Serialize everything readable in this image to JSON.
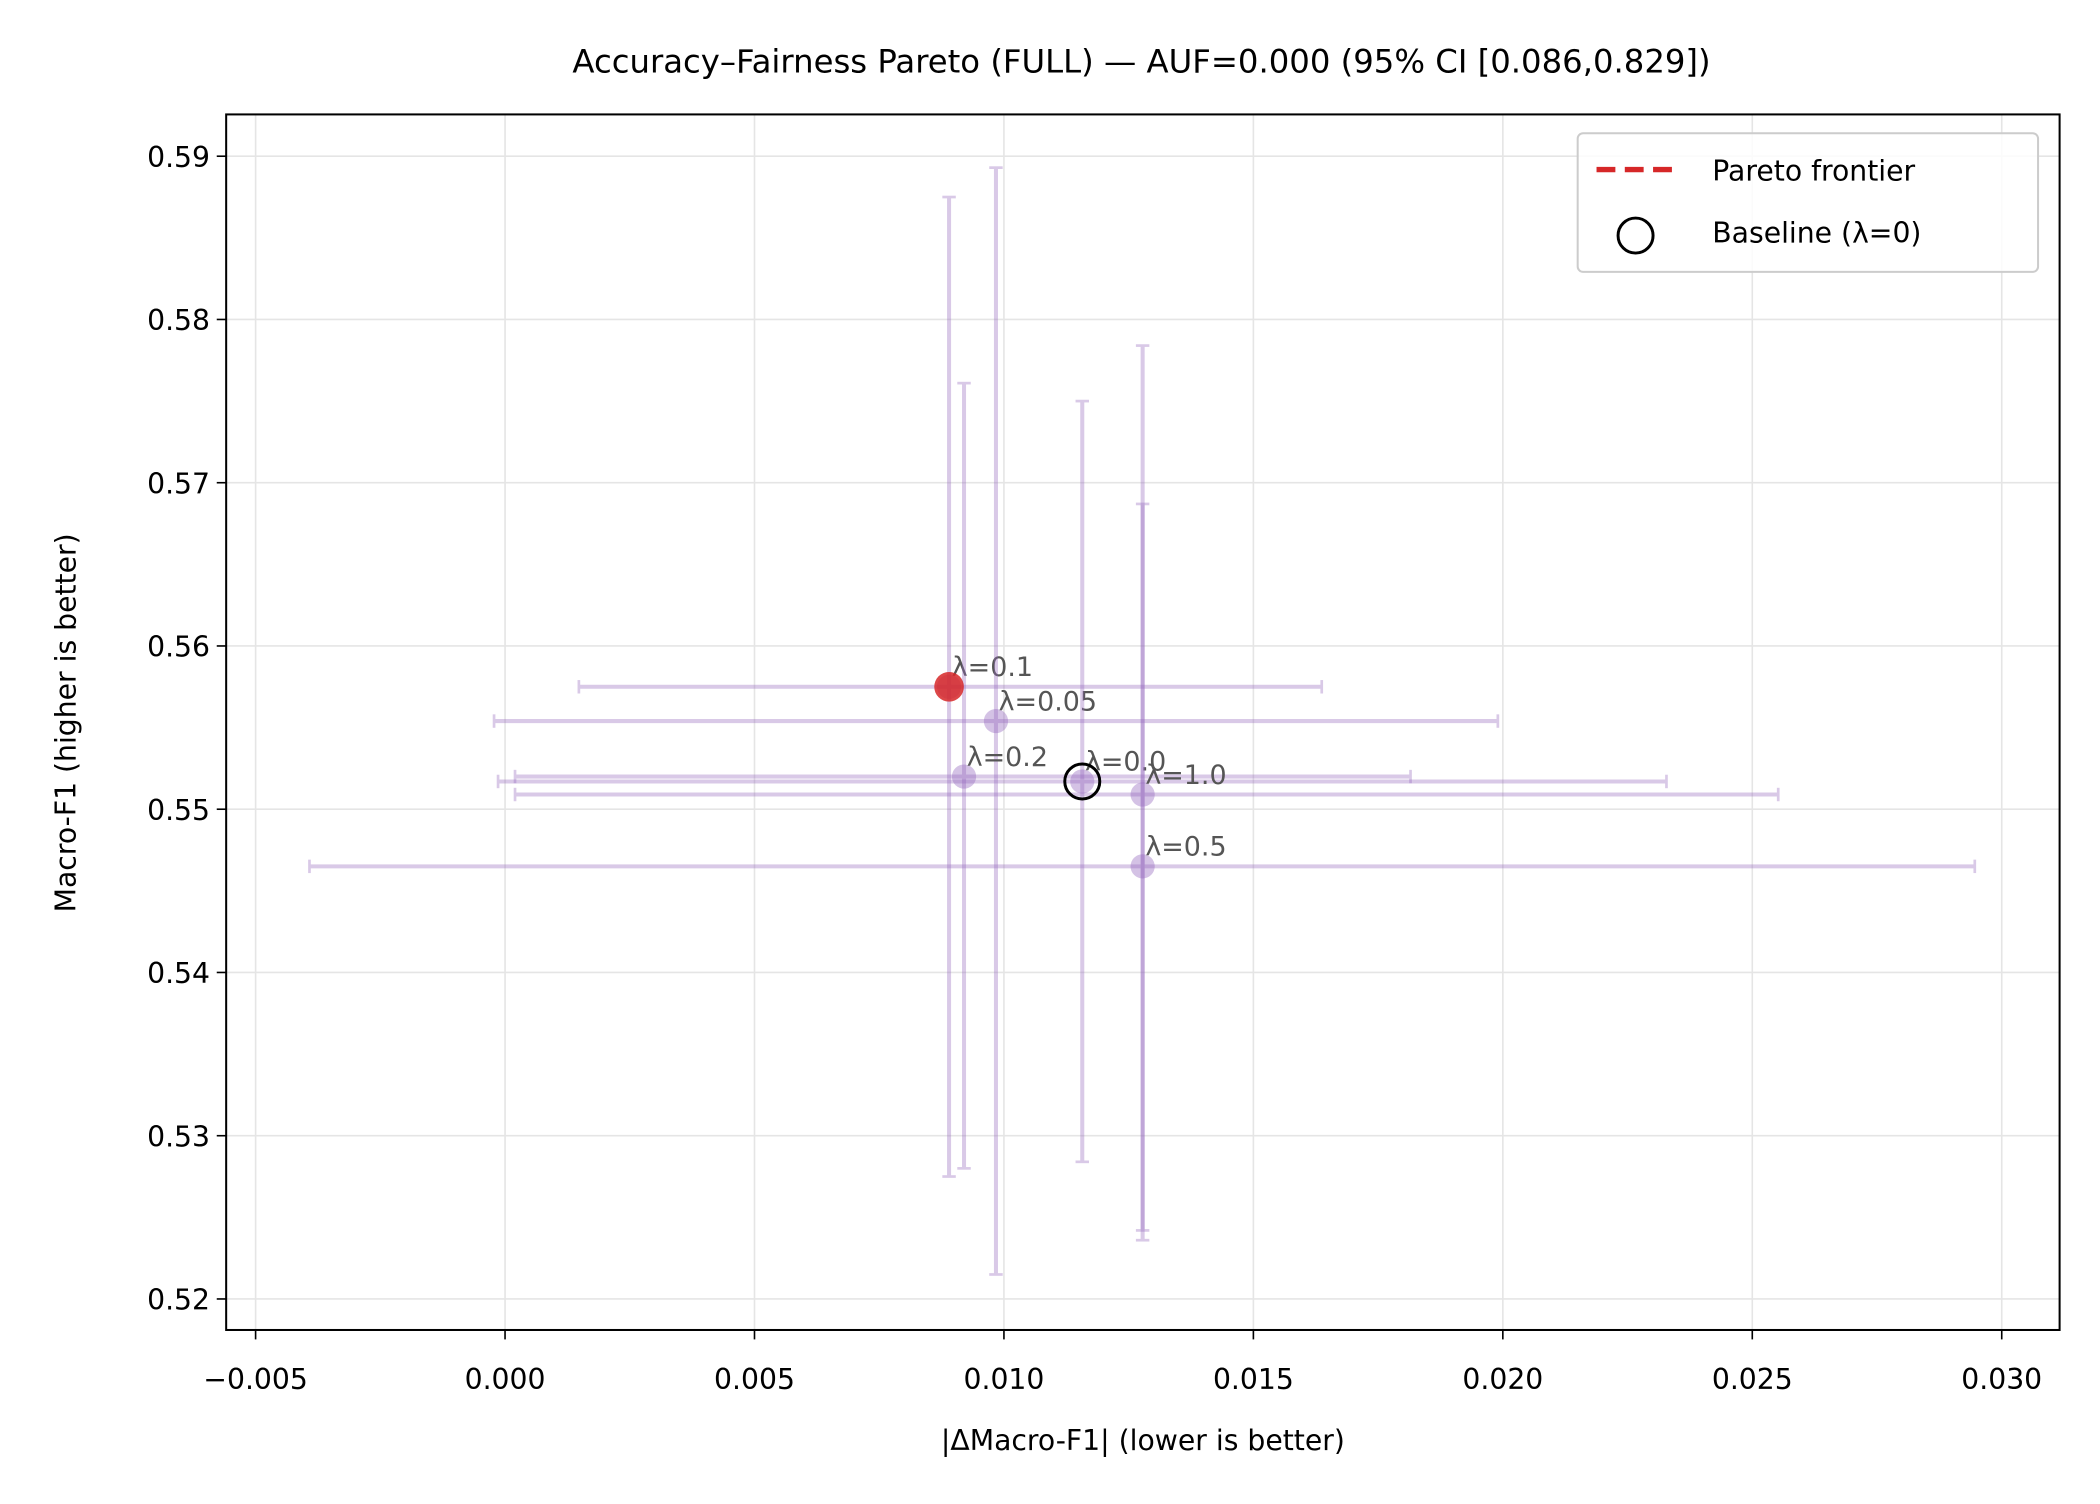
{
  "chart_data": {
    "type": "scatter",
    "title": "Accuracy–Fairness Pareto (FULL) — AUF=0.000 (95% CI [0.086,0.829])",
    "x_label": "|ΔMacro-F1| (lower is better)",
    "y_label": "Macro-F1 (higher is better)",
    "xlim": [
      -0.00559,
      0.03116
    ],
    "ylim": [
      0.5181,
      0.59256
    ],
    "xticks": [
      {
        "value": -0.005,
        "label": "−0.005"
      },
      {
        "value": 0,
        "label": "0.000"
      },
      {
        "value": 0.005,
        "label": "0.005"
      },
      {
        "value": 0.01,
        "label": "0.010"
      },
      {
        "value": 0.015,
        "label": "0.015"
      },
      {
        "value": 0.02,
        "label": "0.020"
      },
      {
        "value": 0.025,
        "label": "0.025"
      },
      {
        "value": 0.03,
        "label": "0.030"
      }
    ],
    "yticks": [
      0.52,
      0.53,
      0.54,
      0.55,
      0.56,
      0.57,
      0.58,
      0.59
    ],
    "grid": true,
    "color": "#9467bd",
    "points": [
      {
        "label": "λ=0.1",
        "x": 0.0089,
        "y": 0.5575,
        "x_ci": [
          0.00148,
          0.01637
        ],
        "y_ci": [
          0.5275,
          0.5875
        ]
      },
      {
        "label": "λ=0.05",
        "x": 0.00984,
        "y": 0.5554,
        "x_ci": [
          -0.00022,
          0.0199
        ],
        "y_ci": [
          0.5215,
          0.5893
        ]
      },
      {
        "label": "λ=0.2",
        "x": 0.0092,
        "y": 0.552,
        "x_ci": [
          0.0002,
          0.01815
        ],
        "y_ci": [
          0.528,
          0.5761
        ]
      },
      {
        "label": "λ=0.0",
        "x": 0.01157,
        "y": 0.5517,
        "x_ci": [
          -0.00014,
          0.02328
        ],
        "y_ci": [
          0.5284,
          0.575
        ]
      },
      {
        "label": "λ=1.0",
        "x": 0.01278,
        "y": 0.5509,
        "x_ci": [
          0.0002,
          0.02552
        ],
        "y_ci": [
          0.5242,
          0.5784
        ]
      },
      {
        "label": "λ=0.5",
        "x": 0.01278,
        "y": 0.5465,
        "x_ci": [
          -0.00392,
          0.02946
        ],
        "y_ci": [
          0.5236,
          0.5687
        ]
      }
    ],
    "series": [
      {
        "name": "Pareto frontier",
        "color": "#d62728",
        "x": [
          0.0089
        ],
        "values": [
          0.5575
        ]
      },
      {
        "name": "Baseline (λ=0)",
        "color": "#000000",
        "x": [
          0.01157
        ],
        "values": [
          0.5517
        ]
      }
    ],
    "legend": "upper right"
  }
}
